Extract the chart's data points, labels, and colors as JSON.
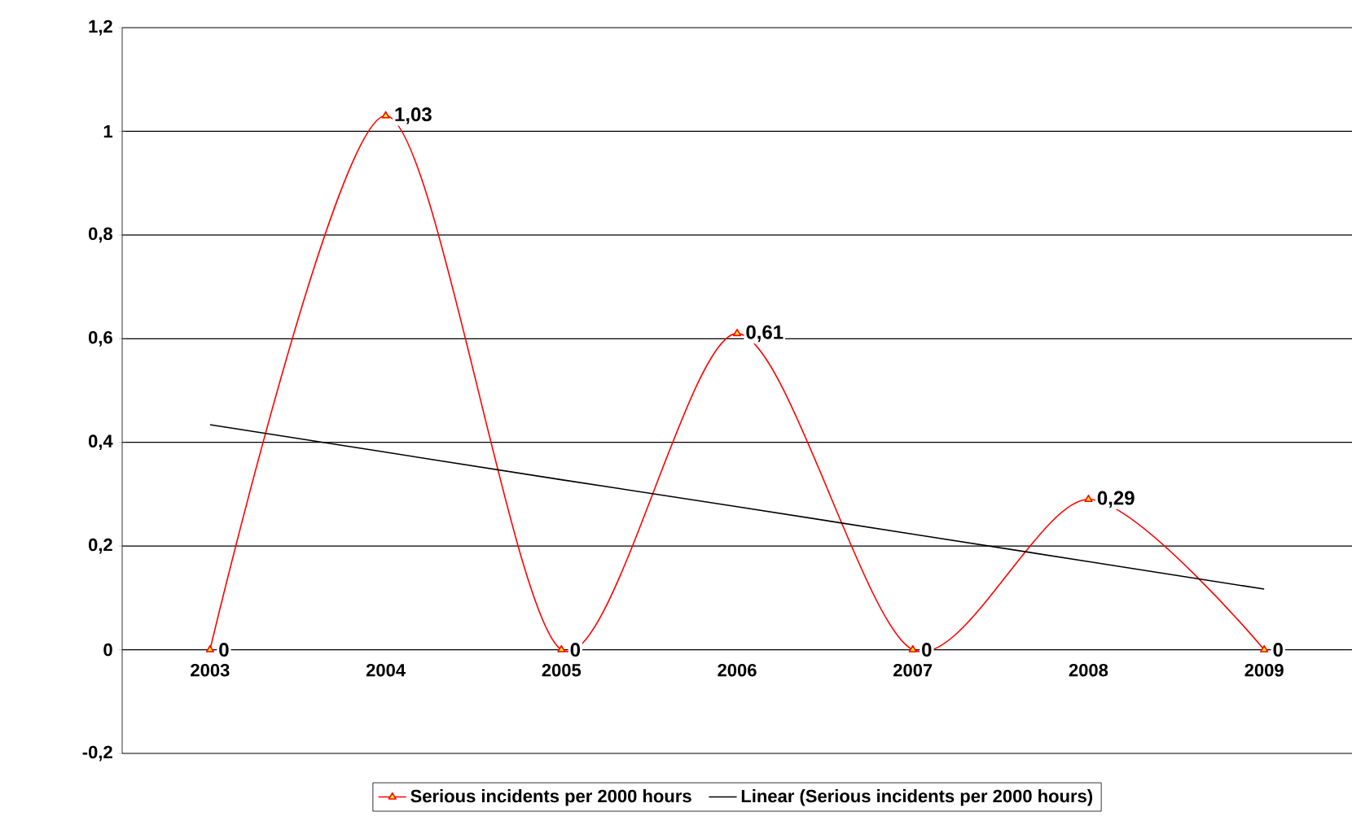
{
  "chart_data": {
    "type": "line",
    "categories": [
      "2003",
      "2004",
      "2005",
      "2006",
      "2007",
      "2008",
      "2009"
    ],
    "series": [
      {
        "name": "Serious incidents per 2000 hours",
        "color": "#ff0000",
        "marker": "triangle",
        "values": [
          0,
          1.03,
          0,
          0.61,
          0,
          0.29,
          0
        ],
        "value_labels": [
          "0",
          "1,03",
          "0",
          "0,61",
          "0",
          "0,29",
          "0"
        ]
      },
      {
        "name": "Linear (Serious incidents per 2000 hours)",
        "color": "#000000",
        "marker": "none",
        "values": [
          0.434,
          0.381,
          0.328,
          0.276,
          0.223,
          0.17,
          0.117
        ]
      }
    ],
    "ylim": [
      -0.2,
      1.2
    ],
    "yticks": [
      {
        "value": -0.2,
        "label": "-0,2"
      },
      {
        "value": 0,
        "label": "0"
      },
      {
        "value": 0.2,
        "label": "0,2"
      },
      {
        "value": 0.4,
        "label": "0,4"
      },
      {
        "value": 0.6,
        "label": "0,6"
      },
      {
        "value": 0.8,
        "label": "0,8"
      },
      {
        "value": 1,
        "label": "1"
      },
      {
        "value": 1.2,
        "label": "1,2"
      }
    ],
    "grid": "y",
    "legend": "bottom",
    "line_style": "solid"
  }
}
